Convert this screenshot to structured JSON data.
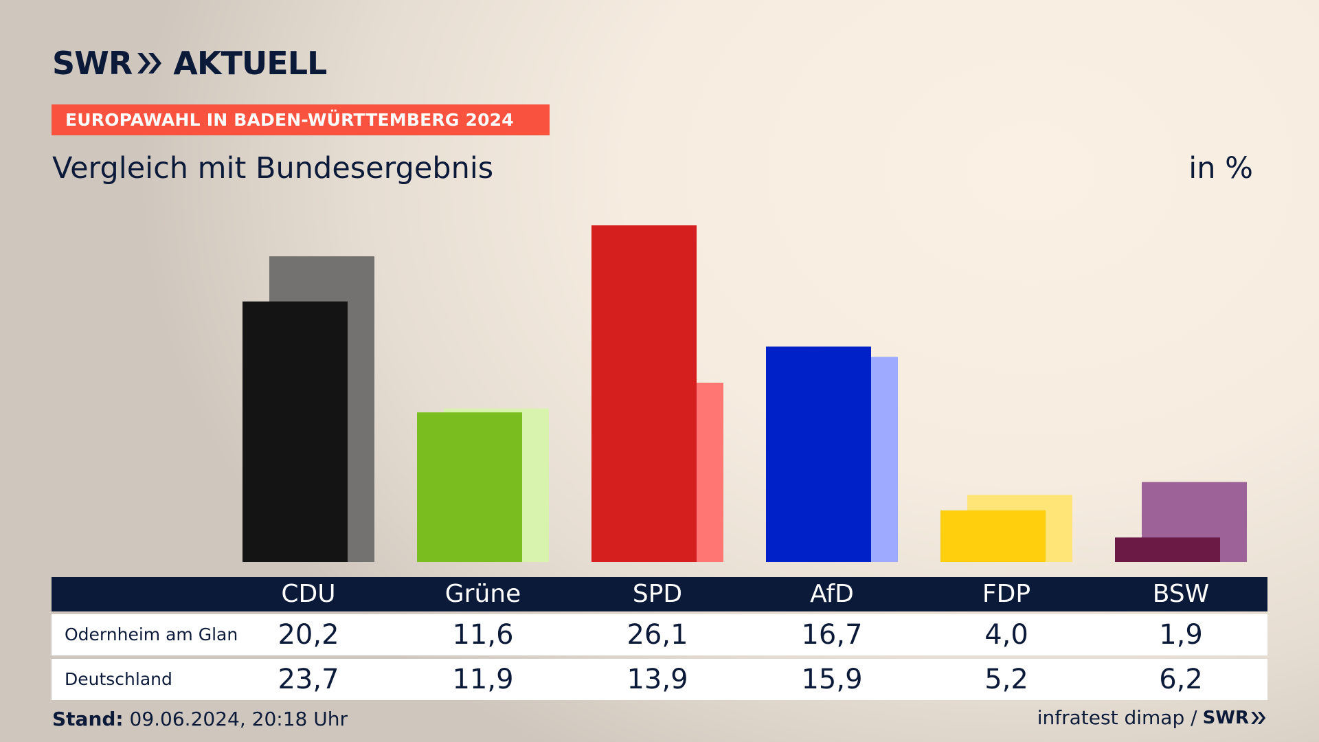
{
  "header": {
    "logo_left": "SWR",
    "logo_right": "AKTUELL",
    "banner": "EUROPAWAHL IN BADEN-WÜRTTEMBERG 2024",
    "subtitle": "Vergleich mit Bundesergebnis",
    "unit": "in %"
  },
  "chart_data": {
    "type": "bar",
    "categories": [
      "CDU",
      "Grüne",
      "SPD",
      "AfD",
      "FDP",
      "BSW"
    ],
    "series": [
      {
        "name": "Odernheim am Glan",
        "values": [
          20.2,
          11.6,
          26.1,
          16.7,
          4.0,
          1.9
        ],
        "labels": [
          "20,2",
          "11,6",
          "26,1",
          "16,7",
          "4,0",
          "1,9"
        ]
      },
      {
        "name": "Deutschland",
        "values": [
          23.7,
          11.9,
          13.9,
          15.9,
          5.2,
          6.2
        ],
        "labels": [
          "23,7",
          "11,9",
          "13,9",
          "15,9",
          "5,2",
          "6,2"
        ]
      }
    ],
    "colors": {
      "primary": [
        "#141414",
        "#7abd1e",
        "#d51f1f",
        "#0020c8",
        "#ffcf0d",
        "#6a1a44"
      ],
      "secondary": [
        "#737270",
        "#d7f3ad",
        "#ff7672",
        "#9daaff",
        "#ffe477",
        "#9d6399"
      ]
    },
    "ylim": [
      0,
      26.1
    ],
    "legend": "table-below"
  },
  "footer": {
    "stand_label": "Stand:",
    "stand_value": " 09.06.2024, 20:18 Uhr",
    "source": "infratest dimap /",
    "source_logo": "SWR"
  }
}
